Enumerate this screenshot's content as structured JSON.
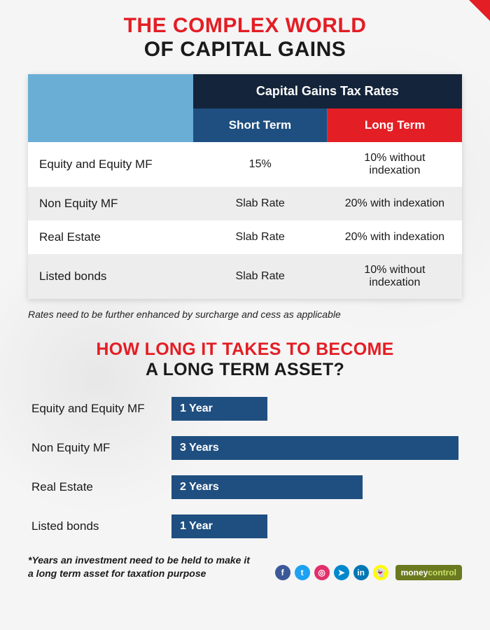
{
  "colors": {
    "accent_red": "#e31e24",
    "header_lightblue": "#6aaed6",
    "header_navy": "#14243a",
    "header_short_bg": "#1f4f80",
    "header_long_bg": "#e31e24",
    "row_odd_bg": "#ffffff",
    "row_even_bg": "#ededed",
    "bar_fill": "#1f4f80",
    "brand_bg": "#6b7a1f"
  },
  "title": {
    "line1": "THE COMPLEX WORLD",
    "line2": "OF CAPITAL GAINS"
  },
  "table": {
    "header_top": "Capital Gains Tax Rates",
    "header_short": "Short Term",
    "header_long": "Long Term",
    "rows": [
      {
        "label": "Equity and Equity MF",
        "short": "15%",
        "long": "10% without indexation"
      },
      {
        "label": "Non Equity MF",
        "short": "Slab Rate",
        "long": "20% with indexation"
      },
      {
        "label": "Real Estate",
        "short": "Slab Rate",
        "long": "20% with indexation"
      },
      {
        "label": "Listed bonds",
        "short": "Slab Rate",
        "long": "10% without indexation"
      }
    ],
    "footnote": "Rates need to be further enhanced by surcharge and cess as applicable"
  },
  "subtitle": {
    "line1": "HOW LONG IT TAKES TO BECOME",
    "line2": "A LONG TERM ASSET?"
  },
  "bars": {
    "max_years": 3,
    "items": [
      {
        "label": "Equity and Equity MF",
        "years": 1,
        "text": "1 Year"
      },
      {
        "label": "Non Equity MF",
        "years": 3,
        "text": "3 Years"
      },
      {
        "label": "Real Estate",
        "years": 2,
        "text": "2 Years"
      },
      {
        "label": "Listed bonds",
        "years": 1,
        "text": "1 Year"
      }
    ],
    "footnote": "*Years an investment need to be held to make it a long term asset for taxation purpose"
  },
  "social": {
    "icons": [
      {
        "name": "facebook",
        "glyph": "f",
        "bg": "#3b5998"
      },
      {
        "name": "twitter",
        "glyph": "t",
        "bg": "#1da1f2"
      },
      {
        "name": "instagram",
        "glyph": "◎",
        "bg": "#e1306c"
      },
      {
        "name": "telegram",
        "glyph": "➤",
        "bg": "#0088cc"
      },
      {
        "name": "linkedin",
        "glyph": "in",
        "bg": "#0077b5"
      },
      {
        "name": "snapchat",
        "glyph": "👻",
        "bg": "#fffc00"
      }
    ],
    "brand_money": "money",
    "brand_control": "control"
  }
}
